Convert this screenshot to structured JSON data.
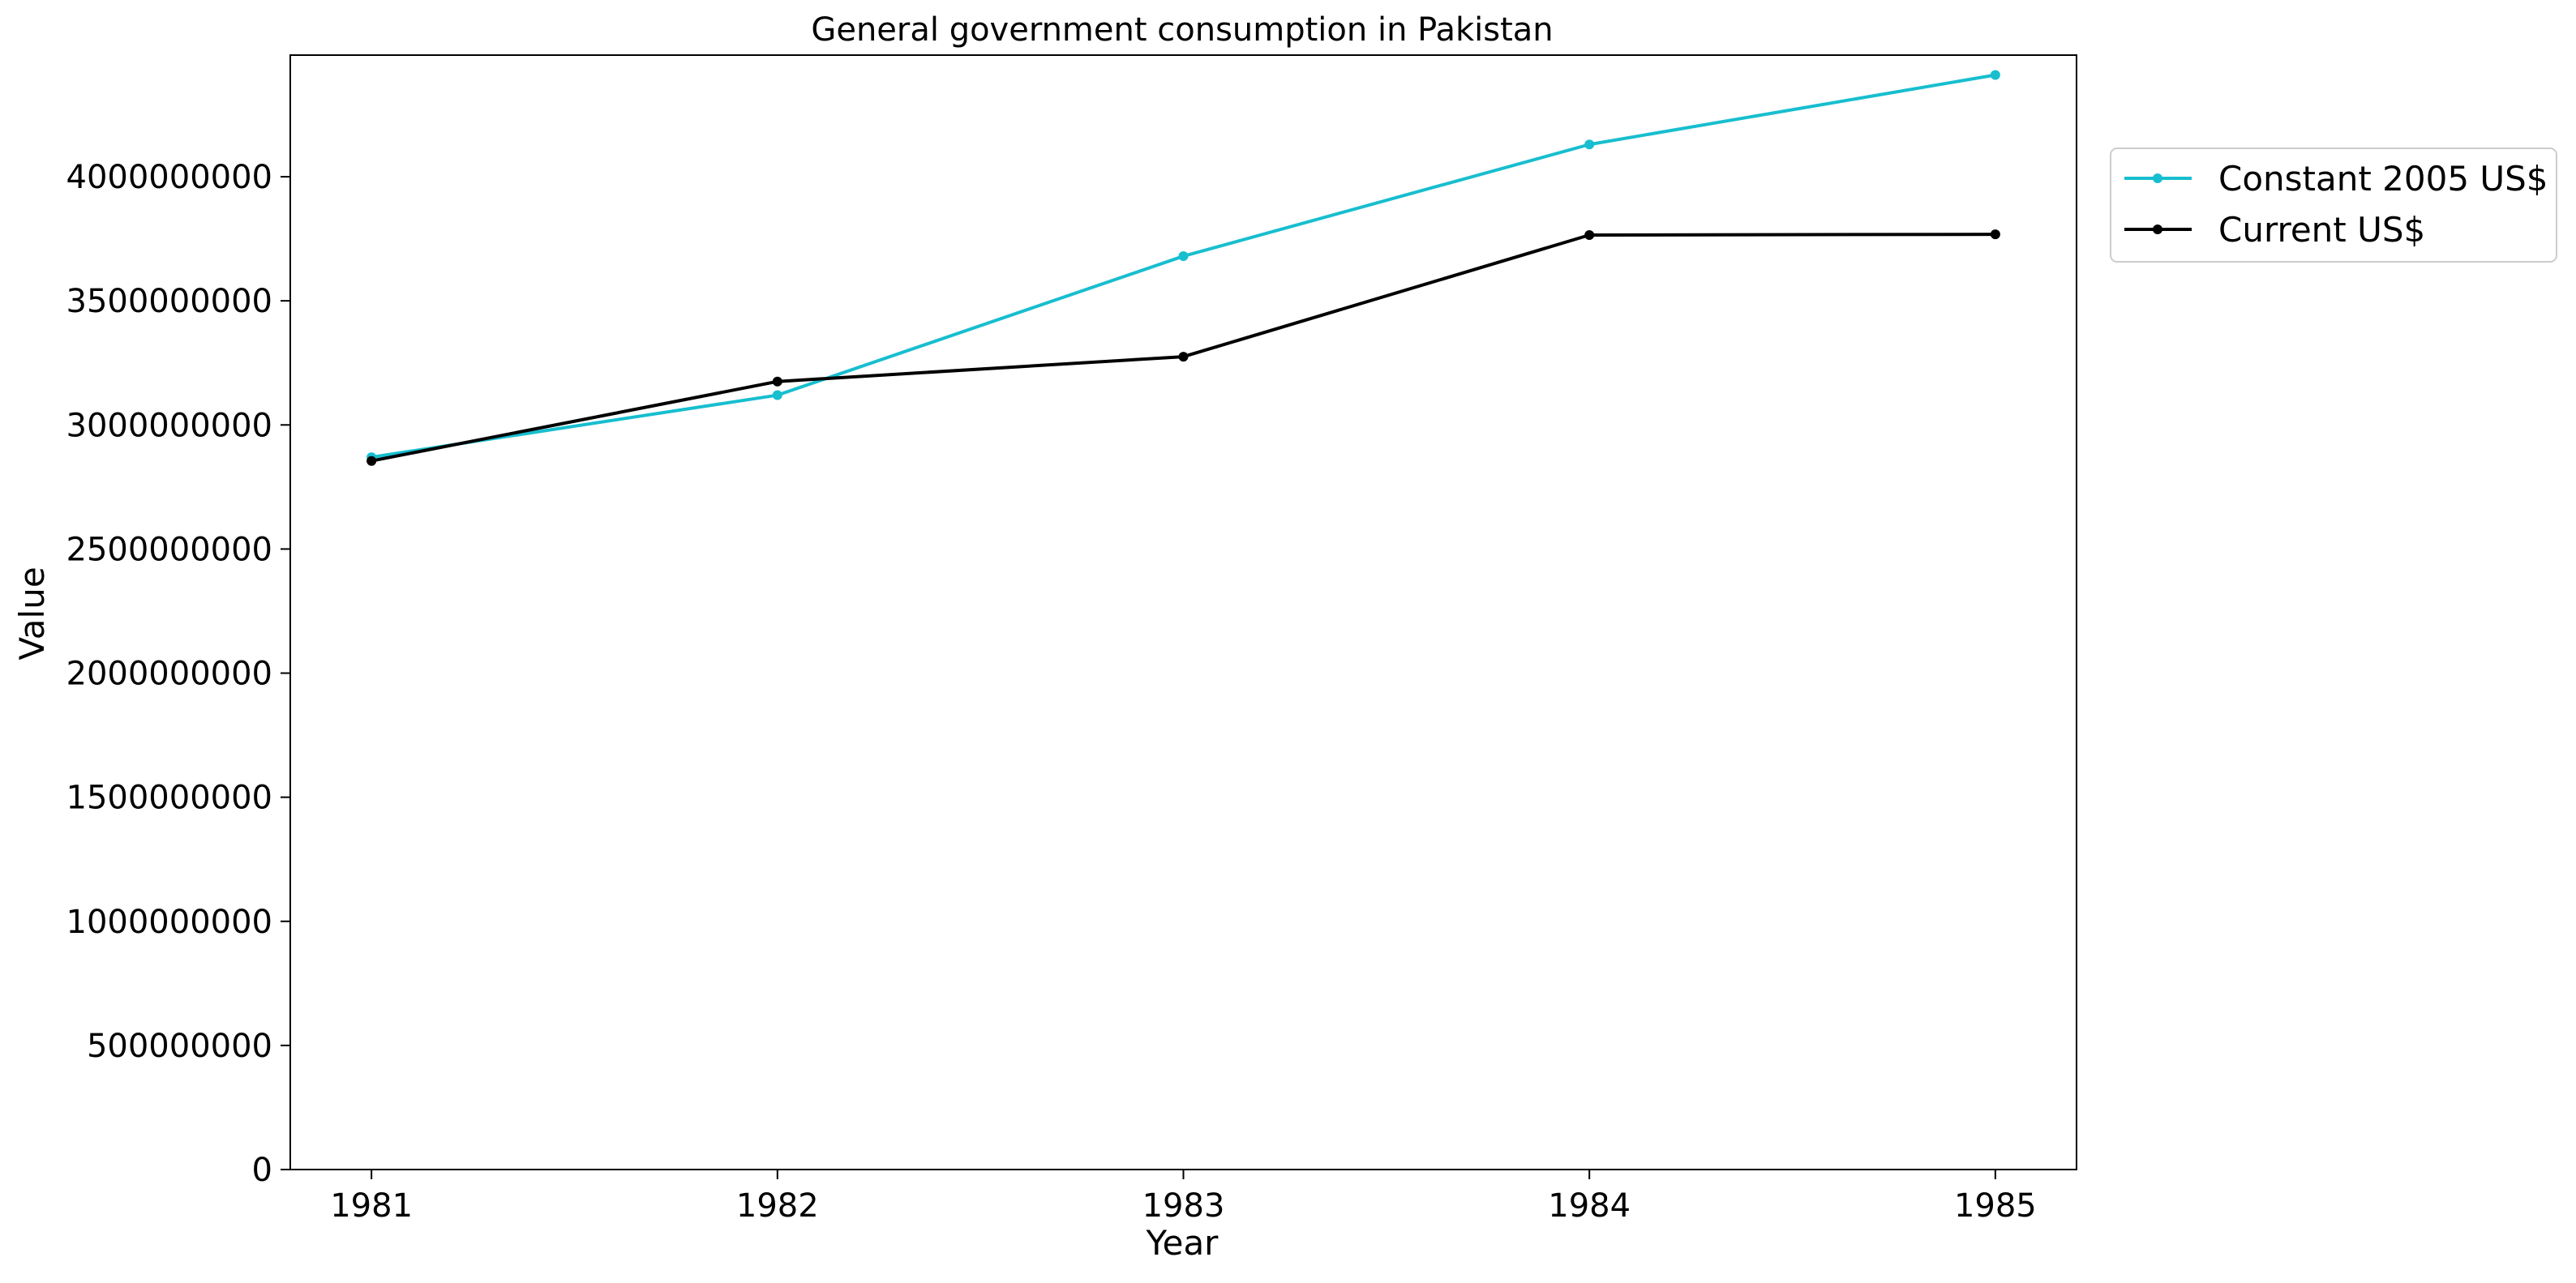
{
  "chart_data": {
    "type": "line",
    "title": "General government consumption in Pakistan",
    "xlabel": "Year",
    "ylabel": "Value",
    "x": [
      1981,
      1982,
      1983,
      1984,
      1985
    ],
    "x_ticks": [
      "1981",
      "1982",
      "1983",
      "1984",
      "1985"
    ],
    "y_ticks": [
      "0",
      "500000000",
      "1000000000",
      "1500000000",
      "2000000000",
      "2500000000",
      "3000000000",
      "3500000000",
      "4000000000"
    ],
    "y_tick_values": [
      0,
      500000000,
      1000000000,
      1500000000,
      2000000000,
      2500000000,
      3000000000,
      3500000000,
      4000000000
    ],
    "xlim": [
      1980.8,
      1985.2
    ],
    "ylim": [
      0,
      4490000000
    ],
    "grid": false,
    "legend_position": "outside right, top",
    "series": [
      {
        "name": "Constant 2005 US$",
        "color": "#17becf",
        "marker": "dot",
        "values": [
          2870000000,
          3120000000,
          3680000000,
          4130000000,
          4410000000
        ]
      },
      {
        "name": "Current US$",
        "color": "#000000",
        "marker": "dot",
        "values": [
          2855000000,
          3175000000,
          3275000000,
          3765000000,
          3768000000
        ]
      }
    ]
  }
}
